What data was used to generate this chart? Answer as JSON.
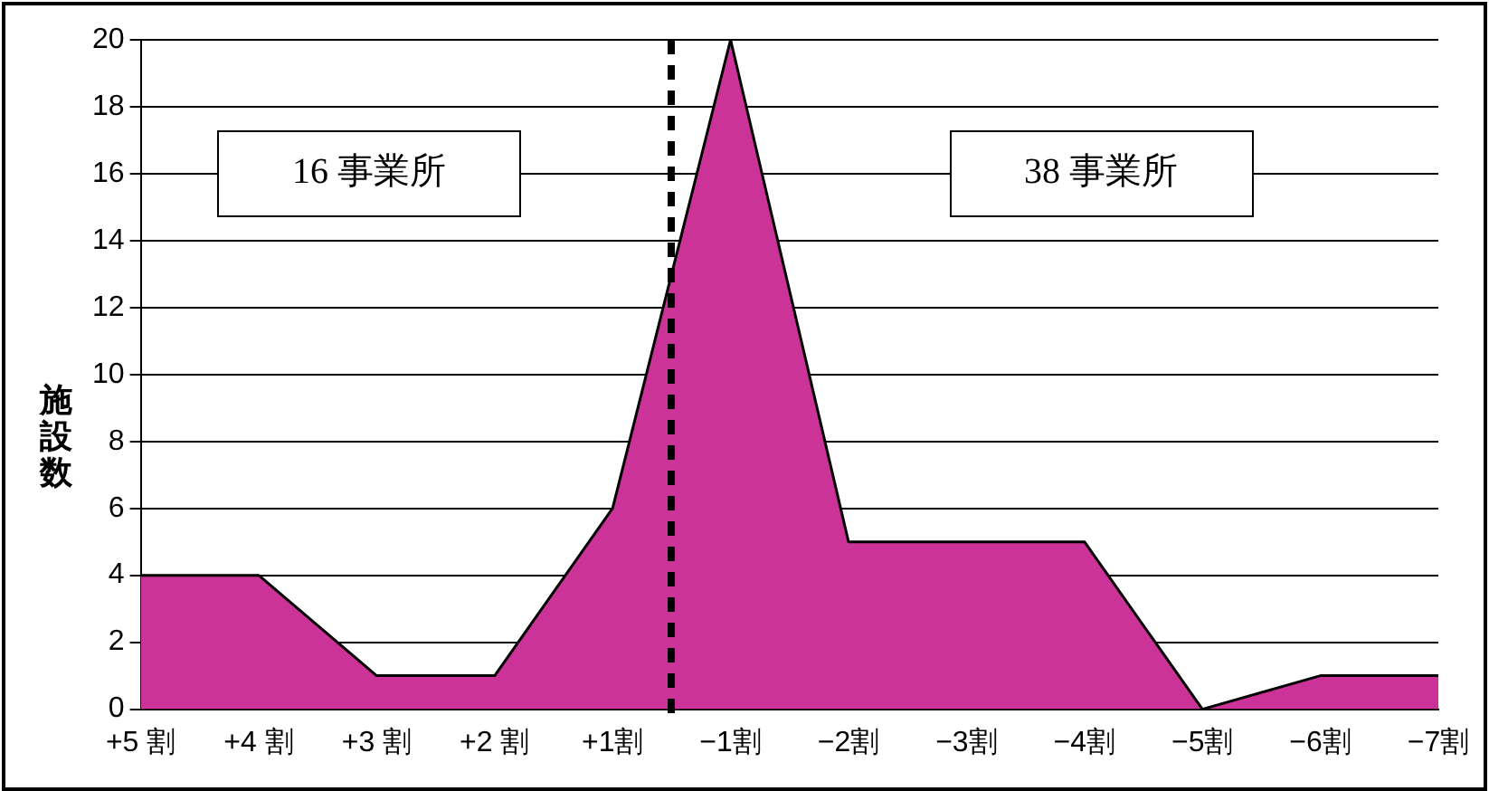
{
  "chart_data": {
    "type": "area",
    "ylabel": "施設数",
    "categories": [
      "+5 割",
      "+4 割",
      "+3 割",
      "+2 割",
      "+1割",
      "−1割",
      "−2割",
      "−3割",
      "−4割",
      "−5割",
      "−6割",
      "−7割"
    ],
    "values": [
      4,
      4,
      1,
      1,
      6,
      20,
      5,
      5,
      5,
      0,
      1,
      1
    ],
    "color": "#cc3399",
    "ylim": [
      0,
      20
    ],
    "yticks": [
      0,
      2,
      4,
      6,
      8,
      10,
      12,
      14,
      16,
      18,
      20
    ],
    "grid": "y",
    "annotations": [
      "16 事業所",
      "38 事業所"
    ]
  }
}
